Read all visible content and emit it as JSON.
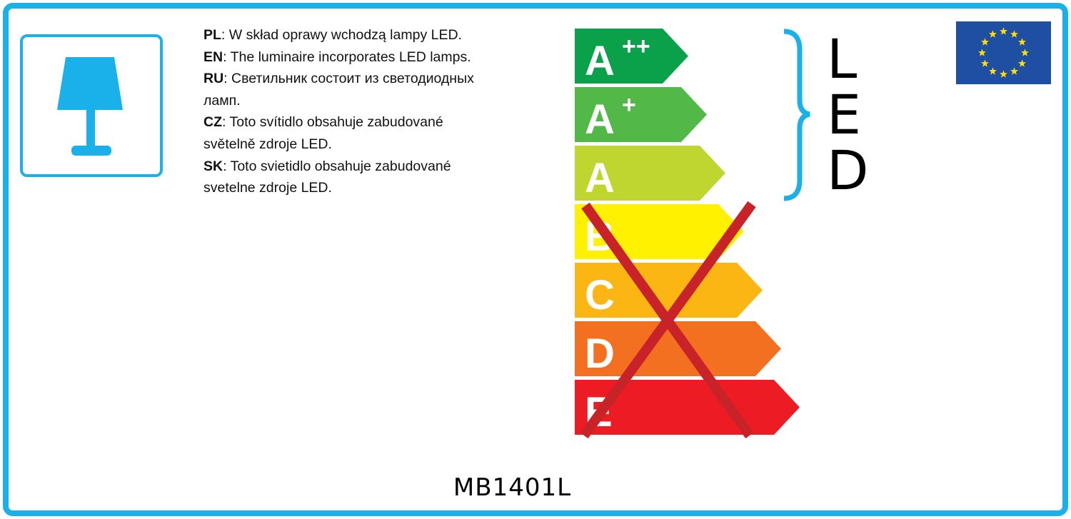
{
  "texts": [
    {
      "code": "PL",
      "lines": [
        "W skład oprawy wchodzą lampy LED."
      ]
    },
    {
      "code": "EN",
      "lines": [
        "The luminaire incorporates LED lamps."
      ]
    },
    {
      "code": "RU",
      "lines": [
        "Светильник состоит из светодиодных",
        "ламп."
      ]
    },
    {
      "code": "CZ",
      "lines": [
        "Toto svítidlo obsahuje zabudované",
        "světelně zdroje LED."
      ]
    },
    {
      "code": "SK",
      "lines": [
        "Toto svietidlo obsahuje zabudované",
        "svetelne zdroje LED."
      ]
    }
  ],
  "energy_classes": [
    {
      "letter": "A",
      "sup": "++",
      "color": "#0ba14b",
      "crossed": false
    },
    {
      "letter": "A",
      "sup": "+",
      "color": "#52b848",
      "crossed": false
    },
    {
      "letter": "A",
      "sup": "",
      "color": "#bfd630",
      "crossed": false
    },
    {
      "letter": "B",
      "sup": "",
      "color": "#fff100",
      "crossed": true
    },
    {
      "letter": "C",
      "sup": "",
      "color": "#fcb614",
      "crossed": true
    },
    {
      "letter": "D",
      "sup": "",
      "color": "#f37021",
      "crossed": true
    },
    {
      "letter": "E",
      "sup": "",
      "color": "#ed1c24",
      "crossed": true
    }
  ],
  "bracket_label": [
    "L",
    "E",
    "D"
  ],
  "model": "MB1401L",
  "colors": {
    "frame": "#1ab0ea",
    "cross": "#c9232a",
    "eu_flag": "#1f4fa3",
    "eu_stars": "#ffde00"
  },
  "icons": {
    "lamp": "table-lamp-icon",
    "flag": "eu-flag-icon"
  }
}
